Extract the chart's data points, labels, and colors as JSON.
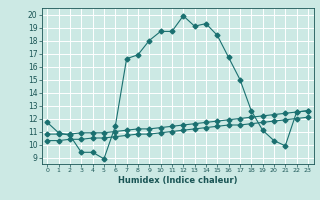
{
  "xlabel": "Humidex (Indice chaleur)",
  "xlim": [
    -0.5,
    23.5
  ],
  "ylim": [
    8.5,
    20.5
  ],
  "yticks": [
    9,
    10,
    11,
    12,
    13,
    14,
    15,
    16,
    17,
    18,
    19,
    20
  ],
  "xticks": [
    0,
    1,
    2,
    3,
    4,
    5,
    6,
    7,
    8,
    9,
    10,
    11,
    12,
    13,
    14,
    15,
    16,
    17,
    18,
    19,
    20,
    21,
    22,
    23
  ],
  "bg_color": "#cce9e4",
  "grid_color": "#ffffff",
  "line_color": "#1a7070",
  "curve1_x": [
    0,
    1,
    2,
    3,
    4,
    5,
    6,
    7,
    8,
    9,
    10,
    11,
    12,
    13,
    14,
    15,
    16,
    17,
    18,
    19,
    20,
    21,
    22,
    23
  ],
  "curve1_y": [
    11.7,
    10.9,
    10.7,
    9.4,
    9.4,
    8.9,
    11.4,
    16.6,
    16.9,
    18.0,
    18.7,
    18.7,
    19.9,
    19.1,
    19.3,
    18.4,
    16.7,
    15.0,
    12.6,
    11.1,
    10.3,
    9.9,
    12.5,
    12.6
  ],
  "curve2_x": [
    0,
    1,
    2,
    3,
    4,
    5,
    6,
    7,
    8,
    9,
    10,
    11,
    12,
    13,
    14,
    15,
    16,
    17,
    18,
    19,
    20,
    21,
    22,
    23
  ],
  "curve2_y": [
    10.8,
    10.8,
    10.8,
    10.9,
    10.9,
    10.9,
    11.0,
    11.1,
    11.2,
    11.2,
    11.3,
    11.4,
    11.5,
    11.6,
    11.7,
    11.8,
    11.9,
    12.0,
    12.1,
    12.2,
    12.3,
    12.4,
    12.5,
    12.6
  ],
  "curve3_x": [
    0,
    1,
    2,
    3,
    4,
    5,
    6,
    7,
    8,
    9,
    10,
    11,
    12,
    13,
    14,
    15,
    16,
    17,
    18,
    19,
    20,
    21,
    22,
    23
  ],
  "curve3_y": [
    10.3,
    10.3,
    10.4,
    10.4,
    10.5,
    10.5,
    10.6,
    10.7,
    10.8,
    10.8,
    10.9,
    11.0,
    11.1,
    11.2,
    11.3,
    11.4,
    11.5,
    11.5,
    11.6,
    11.7,
    11.8,
    11.9,
    12.0,
    12.1
  ]
}
